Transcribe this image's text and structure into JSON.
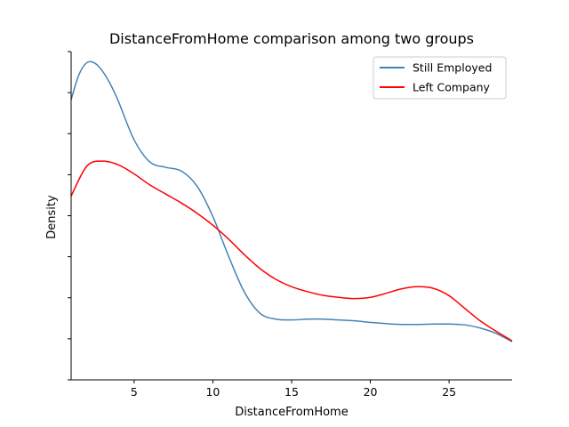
{
  "chart_data": {
    "type": "line",
    "title": "DistanceFromHome comparison among two groups",
    "xlabel": "DistanceFromHome",
    "ylabel": "Density",
    "xlim": [
      1,
      29
    ],
    "ylim": [
      0,
      0.08
    ],
    "xticks": [
      5,
      10,
      15,
      20,
      25
    ],
    "y_tick_labels_shown": false,
    "y_tick_count": 9,
    "grid": false,
    "legend_position": "top-right",
    "series": [
      {
        "name": "Still Employed",
        "color": "#4682b4",
        "x": [
          1,
          1.5,
          2,
          2.5,
          3,
          3.5,
          4,
          5,
          6,
          7,
          8,
          9,
          10,
          11,
          12,
          13,
          14,
          15,
          16,
          17,
          18,
          19,
          20,
          21,
          22,
          23,
          24,
          25,
          26,
          27,
          28,
          29
        ],
        "y": [
          0.0683,
          0.0744,
          0.0773,
          0.0772,
          0.0752,
          0.072,
          0.0679,
          0.0585,
          0.0531,
          0.0518,
          0.0509,
          0.0472,
          0.0398,
          0.0301,
          0.0214,
          0.0162,
          0.0148,
          0.0146,
          0.0148,
          0.0148,
          0.0146,
          0.0144,
          0.014,
          0.0137,
          0.0135,
          0.0135,
          0.0136,
          0.0136,
          0.0134,
          0.0126,
          0.0113,
          0.0093
        ]
      },
      {
        "name": "Left Company",
        "color": "#ff0000",
        "x": [
          1,
          2,
          3,
          4,
          5,
          6,
          7,
          8,
          9,
          10,
          11,
          12,
          13,
          14,
          15,
          16,
          17,
          18,
          19,
          20,
          21,
          22,
          23,
          24,
          25,
          26,
          27,
          28,
          29
        ],
        "y": [
          0.0448,
          0.0521,
          0.0533,
          0.0524,
          0.0502,
          0.0475,
          0.0453,
          0.0431,
          0.0406,
          0.0377,
          0.0343,
          0.0305,
          0.0271,
          0.0245,
          0.0227,
          0.0215,
          0.0206,
          0.0201,
          0.0198,
          0.0201,
          0.0211,
          0.0222,
          0.0227,
          0.0223,
          0.0205,
          0.0174,
          0.0143,
          0.0118,
          0.0095
        ]
      }
    ]
  }
}
